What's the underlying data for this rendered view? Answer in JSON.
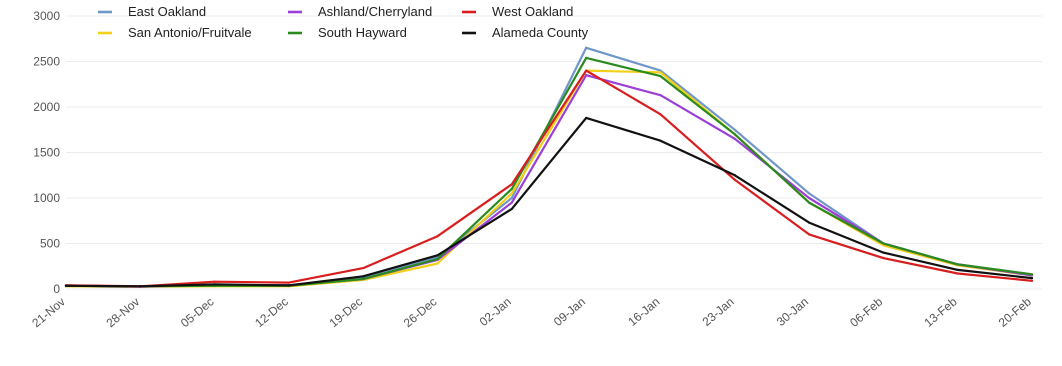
{
  "chart_data": {
    "type": "line",
    "title": "",
    "xlabel": "",
    "ylabel": "",
    "ylim": [
      0,
      3000
    ],
    "yticks": [
      0,
      500,
      1000,
      1500,
      2000,
      2500,
      3000
    ],
    "grid": true,
    "legend_position": "top-left",
    "categories": [
      "21-Nov",
      "28-Nov",
      "05-Dec",
      "12-Dec",
      "19-Dec",
      "26-Dec",
      "02-Jan",
      "09-Jan",
      "16-Jan",
      "23-Jan",
      "30-Jan",
      "06-Feb",
      "13-Feb",
      "20-Feb"
    ],
    "series": [
      {
        "name": "East Oakland",
        "color": "#6f97c8",
        "values": [
          30,
          25,
          40,
          40,
          120,
          350,
          1000,
          2650,
          2400,
          1750,
          1050,
          500,
          270,
          160
        ]
      },
      {
        "name": "San Antonio/Fruitvale",
        "color": "#f2d018",
        "values": [
          30,
          25,
          30,
          30,
          100,
          280,
          1050,
          2400,
          2380,
          1700,
          950,
          480,
          260,
          150
        ]
      },
      {
        "name": "Ashland/Cherryland",
        "color": "#9b3fd6",
        "values": [
          40,
          25,
          45,
          40,
          110,
          320,
          950,
          2350,
          2130,
          1650,
          1000,
          500,
          270,
          150
        ]
      },
      {
        "name": "South Hayward",
        "color": "#2a8a1e",
        "values": [
          35,
          30,
          35,
          35,
          110,
          330,
          1100,
          2540,
          2340,
          1700,
          950,
          500,
          270,
          160
        ]
      },
      {
        "name": "West Oakland",
        "color": "#d81e1e",
        "values": [
          40,
          30,
          80,
          70,
          230,
          580,
          1150,
          2400,
          1920,
          1200,
          600,
          340,
          170,
          90
        ]
      },
      {
        "name": "Alameda County",
        "color": "#111111",
        "values": [
          35,
          30,
          50,
          40,
          140,
          370,
          880,
          1880,
          1630,
          1250,
          730,
          400,
          210,
          120
        ]
      }
    ]
  }
}
